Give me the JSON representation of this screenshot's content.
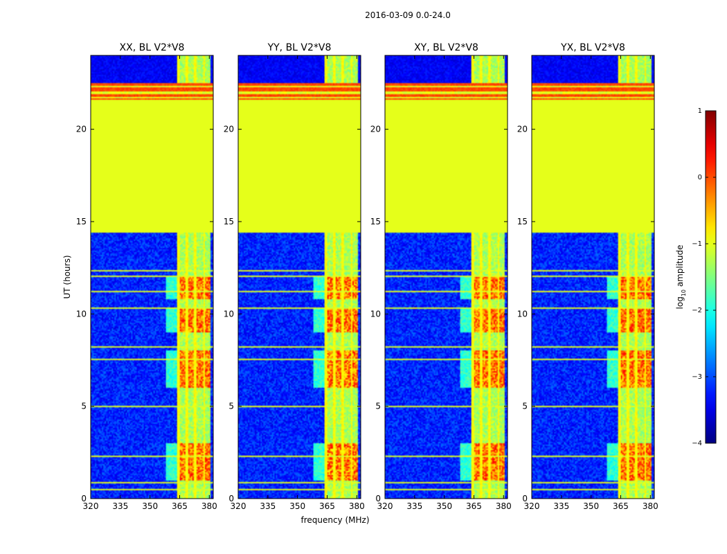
{
  "suptitle": "2016-03-09 0.0-24.0",
  "chart_data": {
    "type": "heatmap",
    "panels": [
      {
        "title": "XX, BL V2*V8"
      },
      {
        "title": "YY, BL V2*V8"
      },
      {
        "title": "XY, BL V2*V8"
      },
      {
        "title": "YX, BL V2*V8"
      }
    ],
    "xlabel": "frequency (MHz)",
    "ylabel": "UT (hours)",
    "xlim": [
      320,
      382
    ],
    "ylim": [
      0,
      24
    ],
    "xticks": [
      320,
      335,
      350,
      365,
      380
    ],
    "yticks": [
      0,
      5,
      10,
      15,
      20
    ],
    "colorbar": {
      "label": "log10 amplitude",
      "label_main": "log",
      "label_sub": "10",
      "label_rest": " amplitude",
      "range": [
        -4,
        1
      ],
      "ticks": [
        "1",
        "0",
        "−1",
        "−2",
        "−3",
        "−4"
      ],
      "colormap": "jet"
    },
    "features": {
      "flagged_block_hours": [
        14.4,
        21.6
      ],
      "flag_value": -1.0,
      "background_level": -3.2,
      "rfi_band_mhz": [
        363.5,
        380.5
      ],
      "rfi_channels_mhz": [
        364.5,
        368.5,
        373,
        377.5
      ],
      "active_intervals_hours": [
        [
          1.0,
          3.0
        ],
        [
          6.0,
          8.0
        ],
        [
          9.0,
          10.3
        ],
        [
          10.8,
          12.0
        ]
      ],
      "dark_blue_top_rows_hours": [
        22.5,
        24.0
      ]
    }
  }
}
